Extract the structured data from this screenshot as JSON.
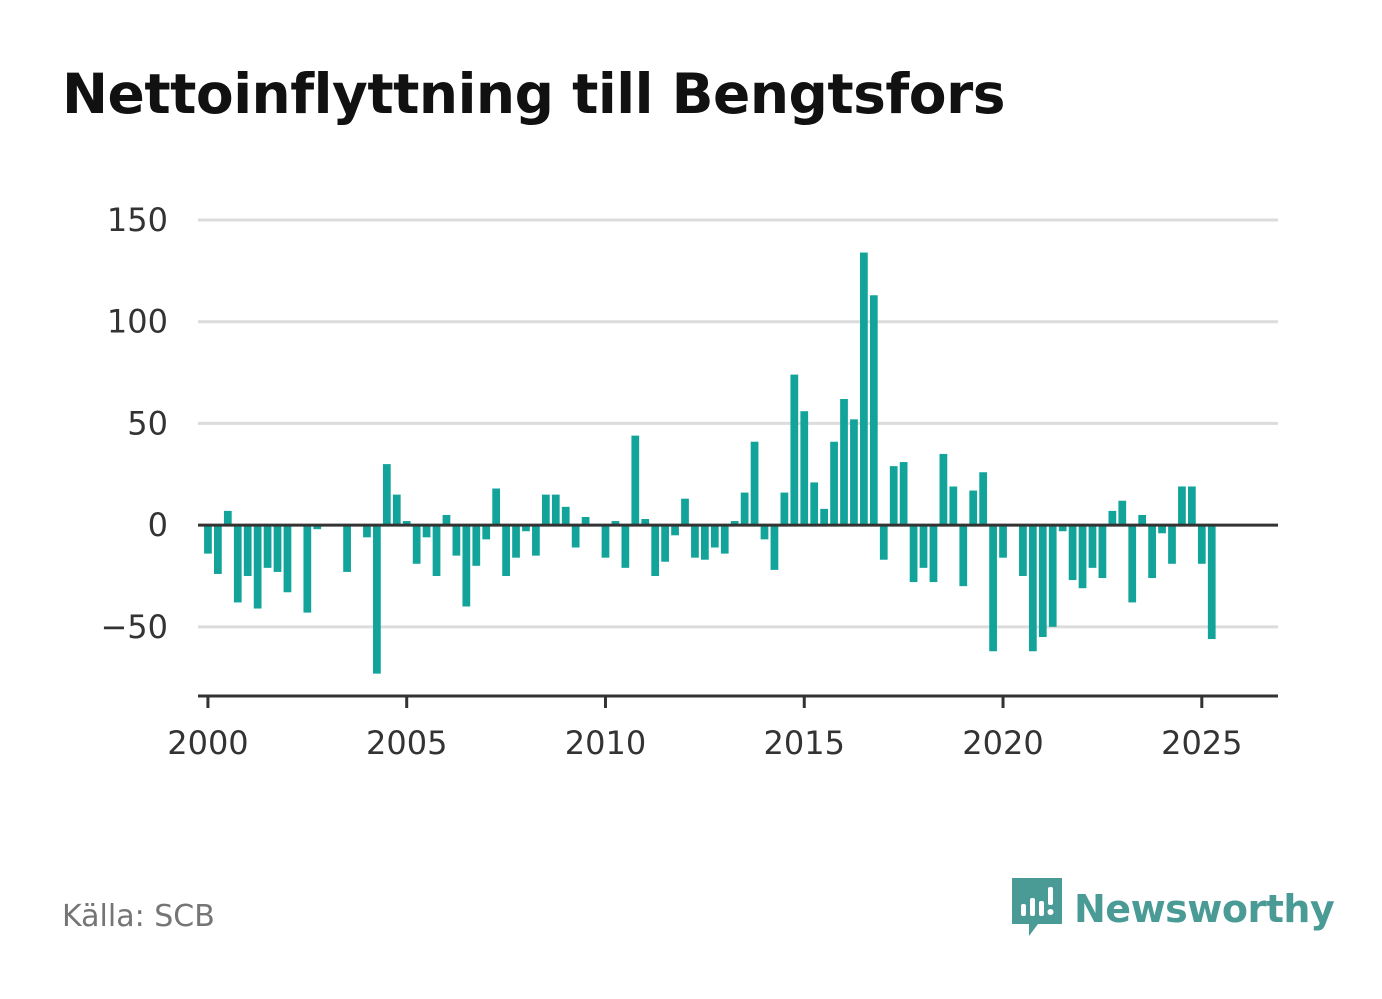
{
  "title": "Nettoinflyttning till Bengtsfors",
  "source": "Källa: SCB",
  "brand": "Newsworthy",
  "colors": {
    "bar": "#12a49a",
    "axis": "#333333",
    "grid": "#dcdcdc",
    "brand": "#4a9a96"
  },
  "chart_data": {
    "type": "bar",
    "title": "Nettoinflyttning till Bengtsfors",
    "xlabel": "",
    "ylabel": "",
    "ylim": [
      -84,
      150
    ],
    "y_ticks": [
      150,
      100,
      50,
      0,
      -50
    ],
    "y_tick_labels": [
      "150",
      "100",
      "50",
      "0",
      "−50"
    ],
    "x_ticks": [
      "2000",
      "2005",
      "2010",
      "2015",
      "2020",
      "2025"
    ],
    "x_range": [
      "1999-10",
      "2026-12"
    ],
    "grid": true,
    "legend": "none",
    "x": [
      "2000-Q1",
      "2000-Q2",
      "2000-Q3",
      "2000-Q4",
      "2001-Q1",
      "2001-Q2",
      "2001-Q3",
      "2001-Q4",
      "2002-Q1",
      "2002-Q2",
      "2002-Q3",
      "2002-Q4",
      "2003-Q1",
      "2003-Q2",
      "2003-Q3",
      "2003-Q4",
      "2004-Q1",
      "2004-Q2",
      "2004-Q3",
      "2004-Q4",
      "2005-Q1",
      "2005-Q2",
      "2005-Q3",
      "2005-Q4",
      "2006-Q1",
      "2006-Q2",
      "2006-Q3",
      "2006-Q4",
      "2007-Q1",
      "2007-Q2",
      "2007-Q3",
      "2007-Q4",
      "2008-Q1",
      "2008-Q2",
      "2008-Q3",
      "2008-Q4",
      "2009-Q1",
      "2009-Q2",
      "2009-Q3",
      "2009-Q4",
      "2010-Q1",
      "2010-Q2",
      "2010-Q3",
      "2010-Q4",
      "2011-Q1",
      "2011-Q2",
      "2011-Q3",
      "2011-Q4",
      "2012-Q1",
      "2012-Q2",
      "2012-Q3",
      "2012-Q4",
      "2013-Q1",
      "2013-Q2",
      "2013-Q3",
      "2013-Q4",
      "2014-Q1",
      "2014-Q2",
      "2014-Q3",
      "2014-Q4",
      "2015-Q1",
      "2015-Q2",
      "2015-Q3",
      "2015-Q4",
      "2016-Q1",
      "2016-Q2",
      "2016-Q3",
      "2016-Q4",
      "2017-Q1",
      "2017-Q2",
      "2017-Q3",
      "2017-Q4",
      "2018-Q1",
      "2018-Q2",
      "2018-Q3",
      "2018-Q4",
      "2019-Q1",
      "2019-Q2",
      "2019-Q3",
      "2019-Q4",
      "2020-Q1",
      "2020-Q2",
      "2020-Q3",
      "2020-Q4",
      "2021-Q1",
      "2021-Q2",
      "2021-Q3",
      "2021-Q4",
      "2022-Q1",
      "2022-Q2",
      "2022-Q3",
      "2022-Q4",
      "2023-Q1",
      "2023-Q2",
      "2023-Q3",
      "2023-Q4",
      "2024-Q1",
      "2024-Q2",
      "2024-Q3",
      "2024-Q4",
      "2025-Q1",
      "2025-Q2"
    ],
    "values": [
      -14,
      -24,
      7,
      -38,
      -25,
      -41,
      -21,
      -23,
      -33,
      0,
      -43,
      -2,
      0,
      0,
      -23,
      0,
      -6,
      -73,
      30,
      15,
      2,
      -19,
      -6,
      -25,
      5,
      -15,
      -40,
      -20,
      -7,
      18,
      -25,
      -16,
      -3,
      -15,
      15,
      15,
      9,
      -11,
      4,
      0,
      -16,
      2,
      -21,
      44,
      3,
      -25,
      -18,
      -5,
      13,
      -16,
      -17,
      -11,
      -14,
      2,
      16,
      41,
      -7,
      -22,
      16,
      74,
      56,
      21,
      8,
      41,
      62,
      52,
      134,
      113,
      -17,
      29,
      31,
      -28,
      -21,
      -28,
      35,
      19,
      -30,
      17,
      26,
      -62,
      -16,
      0,
      -25,
      -62,
      -55,
      -50,
      -3,
      -27,
      -31,
      -21,
      -26,
      7,
      12,
      -38,
      5,
      -26,
      -4,
      -19,
      19,
      19,
      -19,
      -56
    ]
  }
}
